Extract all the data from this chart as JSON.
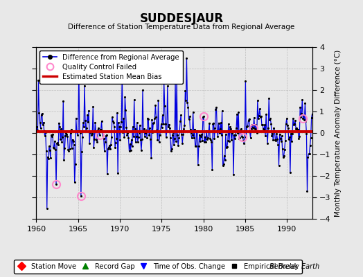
{
  "title": "SUDDESJAUR",
  "subtitle": "Difference of Station Temperature Data from Regional Average",
  "ylabel": "Monthly Temperature Anomaly Difference (°C)",
  "credit": "Berkeley Earth",
  "xlim": [
    1960,
    1993
  ],
  "ylim": [
    -4,
    4
  ],
  "yticks": [
    -4,
    -3,
    -2,
    -1,
    0,
    1,
    2,
    3,
    4
  ],
  "xticks": [
    1960,
    1965,
    1970,
    1975,
    1980,
    1985,
    1990
  ],
  "bias_value": 0.05,
  "background_color": "#e8e8e8",
  "plot_bg_color": "#e8e8e8",
  "line_color": "#0000dd",
  "bias_color": "#cc0000",
  "qc_color": "#ff88cc",
  "seed": 42,
  "n_points": 390,
  "start_year": 1960.0,
  "end_year": 1993.0
}
